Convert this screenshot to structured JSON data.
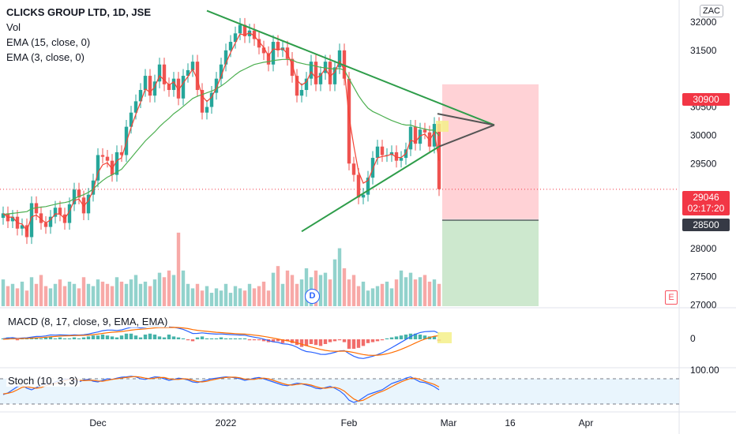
{
  "legend": {
    "title": "CLICKS GROUP LTD, 1D, JSE",
    "lines": [
      "Vol",
      "EMA (15, close, 0)",
      "EMA (3, close, 0)"
    ]
  },
  "currency_button": "ZAC",
  "e_button": "E",
  "dividend_badge": "D",
  "price_tags": {
    "target": "30900",
    "current": "29046",
    "countdown": "02:17:20",
    "stop": "28500"
  },
  "panels": {
    "macd_label": "MACD (8, 17, close, 9, EMA, EMA)",
    "macd_zero": "0",
    "stoch_label": "Stoch (10, 3, 3)",
    "stoch_top": "100.00"
  },
  "colors": {
    "up": "#26a69a",
    "down": "#ef5350",
    "ema15": "#4caf50",
    "ema3": "#f44336",
    "trendline": "#2e9d4a",
    "macd_line": "#2962ff",
    "signal_line": "#ff6d00",
    "stoch_k": "#2962ff",
    "stoch_d": "#ff6d00",
    "target_zone": "#ffcdd2",
    "stop_zone": "#c8e6c9"
  },
  "chart_data": {
    "type": "candlestick",
    "title": "CLICKS GROUP LTD, 1D, JSE",
    "y_ticks": [
      27000,
      27500,
      28000,
      28500,
      29000,
      29500,
      30000,
      30500,
      31000,
      31500,
      32000
    ],
    "y_ticks_text": [
      "27000",
      "27500",
      "28000",
      "",
      "",
      "29500",
      "30000",
      "30500",
      "",
      "31500",
      "32000"
    ],
    "ylim": [
      26980,
      32320
    ],
    "x_ticks": [
      "Dec",
      "2022",
      "Feb",
      "Mar",
      "16",
      "Apr"
    ],
    "x_tick_bars": [
      20,
      47,
      73,
      94,
      107,
      123
    ],
    "n_bars": 135,
    "current_bar": 92,
    "close_series": [
      28620,
      28480,
      28560,
      28350,
      28410,
      28200,
      28800,
      28620,
      28450,
      28380,
      28560,
      28720,
      28600,
      28450,
      28780,
      29040,
      28900,
      28620,
      28950,
      29200,
      29650,
      29620,
      29550,
      29300,
      29700,
      29650,
      30150,
      30400,
      30600,
      30800,
      31050,
      30700,
      30950,
      31250,
      30900,
      30800,
      31000,
      30650,
      31050,
      31150,
      31300,
      30800,
      30400,
      30500,
      30750,
      31000,
      31250,
      31500,
      31650,
      31800,
      31950,
      31750,
      31850,
      31700,
      31550,
      31450,
      31250,
      31650,
      31500,
      31550,
      31350,
      31050,
      30700,
      30800,
      31000,
      31300,
      30900,
      31100,
      31300,
      30900,
      31200,
      31500,
      31000,
      29500,
      29300,
      28900,
      28950,
      29250,
      29600,
      29800,
      29650,
      29650,
      29700,
      29550,
      29600,
      29750,
      30150,
      29850,
      30100,
      30050,
      29800,
      30200,
      29046
    ],
    "ema15": [
      28600,
      28610,
      28620,
      28630,
      28640,
      28650,
      28700,
      28720,
      28730,
      28740,
      28760,
      28780,
      28800,
      28810,
      28830,
      28880,
      28920,
      28950,
      28990,
      29050,
      29130,
      29200,
      29260,
      29300,
      29350,
      29400,
      29500,
      29600,
      29700,
      29800,
      29900,
      29980,
      30060,
      30150,
      30230,
      30300,
      30380,
      30440,
      30510,
      30580,
      30650,
      30690,
      30720,
      30750,
      30780,
      30820,
      30870,
      30930,
      31000,
      31070,
      31130,
      31170,
      31210,
      31250,
      31270,
      31290,
      31300,
      31320,
      31330,
      31340,
      31340,
      31330,
      31290,
      31270,
      31250,
      31240,
      31220,
      31200,
      31190,
      31180,
      31170,
      31180,
      31150,
      31000,
      30850,
      30700,
      30580,
      30480,
      30420,
      30380,
      30340,
      30300,
      30260,
      30230,
      30200,
      30180,
      30180,
      30150,
      30130,
      30110,
      30090,
      30090,
      29990
    ],
    "volume": [
      1.2,
      0.9,
      1.0,
      0.8,
      1.1,
      0.7,
      1.3,
      1.0,
      1.4,
      0.9,
      0.8,
      1.0,
      1.2,
      0.9,
      1.1,
      1.0,
      0.8,
      1.3,
      1.0,
      0.9,
      1.2,
      1.1,
      1.0,
      0.9,
      1.3,
      1.1,
      1.0,
      1.2,
      1.4,
      1.0,
      1.1,
      0.9,
      1.2,
      1.5,
      1.3,
      1.6,
      1.4,
      3.3,
      1.6,
      1.0,
      0.8,
      1.0,
      0.7,
      0.9,
      0.6,
      0.8,
      0.7,
      1.0,
      0.6,
      0.9,
      0.8,
      0.7,
      1.0,
      0.8,
      0.9,
      1.1,
      0.7,
      1.5,
      1.8,
      1.0,
      1.6,
      1.4,
      1.0,
      1.2,
      1.7,
      1.3,
      1.6,
      1.4,
      1.5,
      1.2,
      2.1,
      2.6,
      1.7,
      1.2,
      1.4,
      0.9,
      1.1,
      0.7,
      0.8,
      0.9,
      1.0,
      1.1,
      0.8,
      1.2,
      1.6,
      1.3,
      1.5,
      1.2,
      1.3,
      1.4,
      1.1,
      1.2,
      1.0
    ],
    "macd_hist": [
      0.1,
      0.2,
      0.1,
      -0.1,
      0.1,
      0.1,
      0.2,
      0.2,
      0.1,
      0.2,
      0.3,
      0.1,
      0.2,
      0.1,
      0.1,
      0.2,
      0.1,
      0.2,
      0.3,
      0.4,
      0.4,
      0.5,
      0.4,
      0.3,
      0.2,
      0.4,
      0.6,
      0.6,
      0.4,
      0.2,
      0.5,
      0.6,
      0.5,
      0.3,
      0.2,
      0.5,
      0.3,
      0.2,
      0.1,
      -0.1,
      -0.2,
      0.2,
      0.3,
      0.1,
      0.1,
      0.1,
      0.2,
      0.1,
      0.1,
      0.1,
      0.1,
      0.1,
      -0.1,
      -0.1,
      -0.1,
      -0.2,
      -0.3,
      -0.3,
      -0.2,
      -0.4,
      -0.2,
      -0.4,
      -0.6,
      -0.8,
      -0.7,
      -0.5,
      -0.6,
      -0.7,
      -0.5,
      -0.3,
      -0.2,
      -0.1,
      -0.3,
      -1.0,
      -1.0,
      -0.9,
      -0.7,
      -0.4,
      -0.3,
      -0.2,
      -0.1,
      0.1,
      0.2,
      0.3,
      0.4,
      0.5,
      0.6,
      0.6,
      0.5,
      0.4,
      0.3,
      0.3,
      -0.2
    ],
    "stoch_k": [
      40,
      45,
      55,
      65,
      70,
      60,
      55,
      62,
      70,
      75,
      72,
      80,
      85,
      88,
      90,
      85,
      80,
      86,
      88,
      82,
      80,
      85,
      90,
      88,
      92,
      95,
      96,
      98,
      96,
      90,
      88,
      92,
      96,
      95,
      90,
      85,
      88,
      92,
      90,
      86,
      80,
      78,
      82,
      86,
      90,
      92,
      94,
      96,
      95,
      93,
      90,
      85,
      88,
      92,
      94,
      90,
      85,
      80,
      75,
      70,
      68,
      72,
      76,
      74,
      70,
      66,
      60,
      58,
      62,
      66,
      60,
      52,
      40,
      22,
      15,
      20,
      30,
      40,
      45,
      50,
      55,
      65,
      75,
      80,
      85,
      92,
      96,
      88,
      80,
      78,
      72,
      65,
      55
    ],
    "stoch_d": [
      42,
      44,
      48,
      55,
      63,
      65,
      62,
      60,
      62,
      68,
      72,
      75,
      79,
      84,
      88,
      88,
      85,
      84,
      85,
      85,
      83,
      82,
      85,
      88,
      90,
      92,
      94,
      96,
      97,
      95,
      92,
      90,
      92,
      94,
      94,
      90,
      88,
      88,
      90,
      89,
      85,
      81,
      80,
      82,
      86,
      89,
      92,
      94,
      95,
      95,
      93,
      89,
      88,
      88,
      91,
      92,
      90,
      85,
      80,
      75,
      71,
      70,
      72,
      74,
      73,
      70,
      65,
      61,
      60,
      62,
      63,
      59,
      51,
      38,
      26,
      19,
      22,
      30,
      38,
      45,
      50,
      57,
      65,
      73,
      80,
      86,
      91,
      92,
      88,
      82,
      77,
      72,
      64
    ]
  }
}
